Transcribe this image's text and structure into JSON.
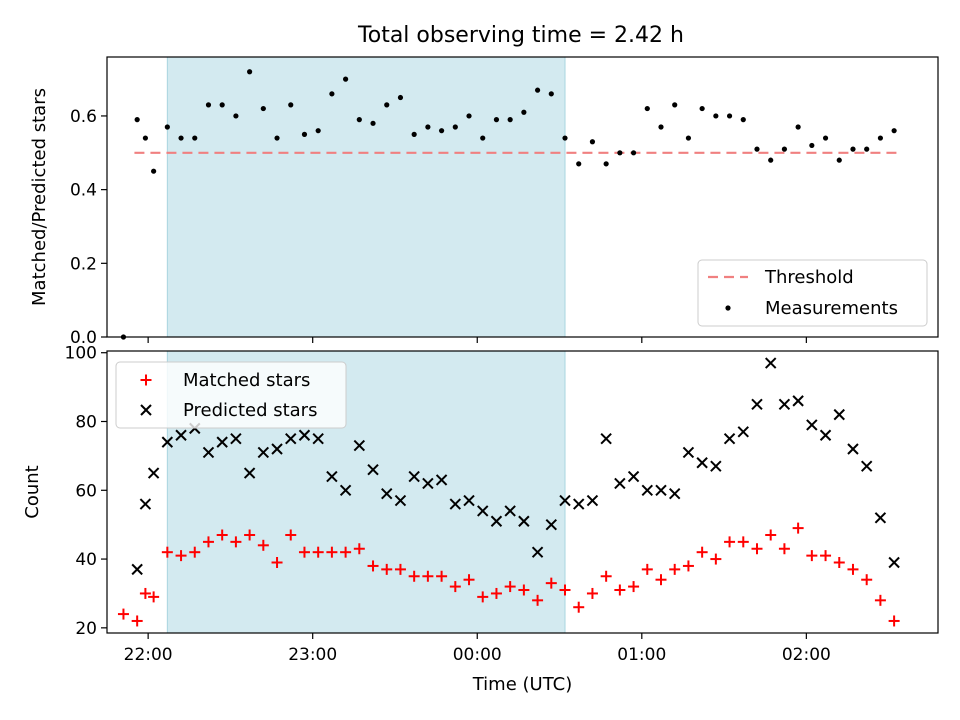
{
  "figure": {
    "title": "Total observing time = 2.42 h"
  },
  "chart_data": [
    {
      "type": "scatter",
      "panel": "top",
      "title": "Total observing time = 2.42 h",
      "xlabel": "",
      "ylabel": "Matched/Predicted stars",
      "x_type": "time",
      "x_ticks": [
        "22:00",
        "23:00",
        "00:00",
        "01:00",
        "02:00"
      ],
      "xlim": [
        "21:45",
        "02:48"
      ],
      "ylim": [
        0,
        0.76
      ],
      "y_ticks": [
        "0.0",
        "0.2",
        "0.4",
        "0.6"
      ],
      "shaded_interval": [
        "22:07",
        "00:32"
      ],
      "shaded_color": "#d3eaf0",
      "threshold": {
        "name": "Threshold",
        "value": 0.5,
        "x_range": [
          "21:55",
          "02:35"
        ],
        "color": "#f08080",
        "style": "dashed"
      },
      "series": [
        {
          "name": "Measurements",
          "marker": "dot",
          "color": "#000000",
          "x": [
            "21:51",
            "21:56",
            "21:59",
            "22:02",
            "22:07",
            "22:12",
            "22:17",
            "22:22",
            "22:27",
            "22:32",
            "22:37",
            "22:42",
            "22:47",
            "22:52",
            "22:57",
            "23:02",
            "23:07",
            "23:12",
            "23:17",
            "23:22",
            "23:27",
            "23:32",
            "23:37",
            "23:42",
            "23:47",
            "23:52",
            "23:57",
            "00:02",
            "00:07",
            "00:12",
            "00:17",
            "00:22",
            "00:27",
            "00:32",
            "00:37",
            "00:42",
            "00:47",
            "00:52",
            "00:57",
            "01:02",
            "01:07",
            "01:12",
            "01:17",
            "01:22",
            "01:27",
            "01:32",
            "01:37",
            "01:42",
            "01:47",
            "01:52",
            "01:57",
            "02:02",
            "02:07",
            "02:12",
            "02:17",
            "02:22",
            "02:27",
            "02:32"
          ],
          "y": [
            0.0,
            0.59,
            0.54,
            0.45,
            0.57,
            0.54,
            0.54,
            0.63,
            0.63,
            0.6,
            0.72,
            0.62,
            0.54,
            0.63,
            0.55,
            0.56,
            0.66,
            0.7,
            0.59,
            0.58,
            0.63,
            0.65,
            0.55,
            0.57,
            0.56,
            0.57,
            0.6,
            0.54,
            0.59,
            0.59,
            0.61,
            0.67,
            0.66,
            0.54,
            0.47,
            0.53,
            0.47,
            0.5,
            0.5,
            0.62,
            0.57,
            0.63,
            0.54,
            0.62,
            0.6,
            0.6,
            0.59,
            0.51,
            0.48,
            0.51,
            0.57,
            0.52,
            0.54,
            0.48,
            0.51,
            0.51,
            0.54,
            0.56
          ]
        }
      ],
      "legend": {
        "position": "lower right",
        "entries": [
          "Threshold",
          "Measurements"
        ]
      }
    },
    {
      "type": "scatter",
      "panel": "bottom",
      "xlabel": "Time (UTC)",
      "ylabel": "Count",
      "x_type": "time",
      "x_ticks": [
        "22:00",
        "23:00",
        "00:00",
        "01:00",
        "02:00"
      ],
      "xlim": [
        "21:45",
        "02:48"
      ],
      "ylim": [
        18.5,
        100.5
      ],
      "y_ticks": [
        "20",
        "40",
        "60",
        "80",
        "100"
      ],
      "shaded_interval": [
        "22:07",
        "00:32"
      ],
      "shaded_color": "#d3eaf0",
      "series": [
        {
          "name": "Matched stars",
          "marker": "plus",
          "color": "#ff0000",
          "x": [
            "21:51",
            "21:56",
            "21:59",
            "22:02",
            "22:07",
            "22:12",
            "22:17",
            "22:22",
            "22:27",
            "22:32",
            "22:37",
            "22:42",
            "22:47",
            "22:52",
            "22:57",
            "23:02",
            "23:07",
            "23:12",
            "23:17",
            "23:22",
            "23:27",
            "23:32",
            "23:37",
            "23:42",
            "23:47",
            "23:52",
            "23:57",
            "00:02",
            "00:07",
            "00:12",
            "00:17",
            "00:22",
            "00:27",
            "00:32",
            "00:37",
            "00:42",
            "00:47",
            "00:52",
            "00:57",
            "01:02",
            "01:07",
            "01:12",
            "01:17",
            "01:22",
            "01:27",
            "01:32",
            "01:37",
            "01:42",
            "01:47",
            "01:52",
            "01:57",
            "02:02",
            "02:07",
            "02:12",
            "02:17",
            "02:22",
            "02:27",
            "02:32"
          ],
          "y": [
            24,
            22,
            30,
            29,
            42,
            41,
            42,
            45,
            47,
            45,
            47,
            44,
            39,
            47,
            42,
            42,
            42,
            42,
            43,
            38,
            37,
            37,
            35,
            35,
            35,
            32,
            34,
            29,
            30,
            32,
            31,
            28,
            33,
            31,
            26,
            30,
            35,
            31,
            32,
            37,
            34,
            37,
            38,
            42,
            40,
            45,
            45,
            43,
            47,
            43,
            49,
            41,
            41,
            39,
            37,
            34,
            28,
            22
          ]
        },
        {
          "name": "Predicted stars",
          "marker": "x",
          "color": "#000000",
          "x": [
            "21:56",
            "21:59",
            "22:02",
            "22:07",
            "22:12",
            "22:17",
            "22:22",
            "22:27",
            "22:32",
            "22:37",
            "22:42",
            "22:47",
            "22:52",
            "22:57",
            "23:02",
            "23:07",
            "23:12",
            "23:17",
            "23:22",
            "23:27",
            "23:32",
            "23:37",
            "23:42",
            "23:47",
            "23:52",
            "23:57",
            "00:02",
            "00:07",
            "00:12",
            "00:17",
            "00:22",
            "00:27",
            "00:32",
            "00:37",
            "00:42",
            "00:47",
            "00:52",
            "00:57",
            "01:02",
            "01:07",
            "01:12",
            "01:17",
            "01:22",
            "01:27",
            "01:32",
            "01:37",
            "01:42",
            "01:47",
            "01:52",
            "01:57",
            "02:02",
            "02:07",
            "02:12",
            "02:17",
            "02:22",
            "02:27",
            "02:32"
          ],
          "y": [
            37,
            56,
            65,
            74,
            76,
            78,
            71,
            74,
            75,
            65,
            71,
            72,
            75,
            76,
            75,
            64,
            60,
            73,
            66,
            59,
            57,
            64,
            62,
            63,
            56,
            57,
            54,
            51,
            54,
            51,
            42,
            50,
            57,
            56,
            57,
            75,
            62,
            64,
            60,
            60,
            59,
            71,
            68,
            67,
            75,
            77,
            85,
            97,
            85,
            86,
            79,
            76,
            82,
            72,
            67,
            52,
            39
          ]
        }
      ],
      "legend": {
        "position": "upper left",
        "entries": [
          "Matched stars",
          "Predicted stars"
        ]
      }
    }
  ]
}
